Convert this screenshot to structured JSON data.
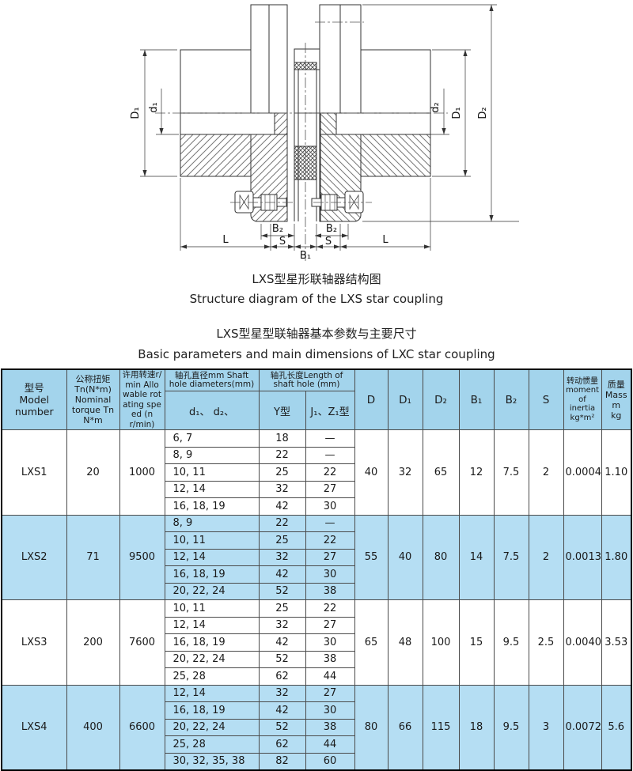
{
  "diagram": {
    "caption_cn": "LXS型星形联轴器结构图",
    "caption_en": "Structure diagram of the LXS star coupling",
    "labels": {
      "D1_left": "D₁",
      "d1": "d₁",
      "d2": "d₂",
      "D1_right": "D₁",
      "D2_right": "D₂",
      "L_left": "L",
      "B2_left": "B₂",
      "S_left": "S",
      "B1": "B₁",
      "B2_right": "B₂",
      "S_right": "S",
      "L_right": "L"
    }
  },
  "table": {
    "title_cn": "LXS型星型联轴器基本参数与主要尺寸",
    "title_en": "Basic parameters and main dimensions of LXC star coupling",
    "headers": {
      "model": "型号\nModel\nnumber",
      "torque": "公称扭矩\nTn(N*m)\nNominal\ntorque Tn\nN*m",
      "speed": "许用转速r/\nmin Allo\nwable rot\nating spe\ned (n r/min)",
      "shaft_dia": "轴孔直径mm Shaft\nhole diameters(mm)",
      "shaft_len": "轴孔长度Length of\nshaft hole (mm)",
      "d1d2": "d₁、 d₂、",
      "y_type": "Y型",
      "j1z1_type": "J₁、Z₁型",
      "D": "D",
      "D1": "D₁",
      "D2": "D₂",
      "B1": "B₁",
      "B2": "B₂",
      "S": "S",
      "inertia": "转动惯量\nmoment\nof\ninertia\nkg*m²",
      "mass": "质量\nMass\nm\nkg"
    },
    "sections": [
      {
        "model": "LXS1",
        "torque": "20",
        "speed": "1000",
        "highlight": false,
        "rows": [
          [
            "6, 7",
            "18",
            "—"
          ],
          [
            "8, 9",
            "22",
            "—"
          ],
          [
            "10, 11",
            "25",
            "22"
          ],
          [
            "12, 14",
            "32",
            "27"
          ],
          [
            "16, 18, 19",
            "42",
            "30"
          ]
        ],
        "D": "40",
        "D1": "32",
        "D2": "65",
        "B1": "12",
        "B2": "7.5",
        "S": "2",
        "inertia": "0.0004",
        "mass": "1.10"
      },
      {
        "model": "LXS2",
        "torque": "71",
        "speed": "9500",
        "highlight": true,
        "rows": [
          [
            "8, 9",
            "22",
            "—"
          ],
          [
            "10, 11",
            "25",
            "22"
          ],
          [
            "12, 14",
            "32",
            "27"
          ],
          [
            "16, 18, 19",
            "42",
            "30"
          ],
          [
            "20, 22, 24",
            "52",
            "38"
          ]
        ],
        "D": "55",
        "D1": "40",
        "D2": "80",
        "B1": "14",
        "B2": "7.5",
        "S": "2",
        "inertia": "0.0013",
        "mass": "1.80"
      },
      {
        "model": "LXS3",
        "torque": "200",
        "speed": "7600",
        "highlight": false,
        "rows": [
          [
            "10, 11",
            "25",
            "22"
          ],
          [
            "12, 14",
            "32",
            "27"
          ],
          [
            "16, 18, 19",
            "42",
            "30"
          ],
          [
            "20, 22, 24",
            "52",
            "38"
          ],
          [
            "25, 28",
            "62",
            "44"
          ]
        ],
        "D": "65",
        "D1": "48",
        "D2": "100",
        "B1": "15",
        "B2": "9.5",
        "S": "2.5",
        "inertia": "0.0040",
        "mass": "3.53"
      },
      {
        "model": "LXS4",
        "torque": "400",
        "speed": "6600",
        "highlight": true,
        "rows": [
          [
            "12, 14",
            "32",
            "27"
          ],
          [
            "16, 18, 19",
            "42",
            "30"
          ],
          [
            "20, 22, 24",
            "52",
            "38"
          ],
          [
            "25, 28",
            "62",
            "44"
          ],
          [
            "30, 32, 35, 38",
            "82",
            "60"
          ]
        ],
        "D": "80",
        "D1": "66",
        "D2": "115",
        "B1": "18",
        "B2": "9.5",
        "S": "3",
        "inertia": "0.0072",
        "mass": "5.6"
      }
    ],
    "colors": {
      "header_bg": "#a3d4ec",
      "highlight_bg": "#b5def3",
      "row_bg": "#ffffff"
    }
  }
}
